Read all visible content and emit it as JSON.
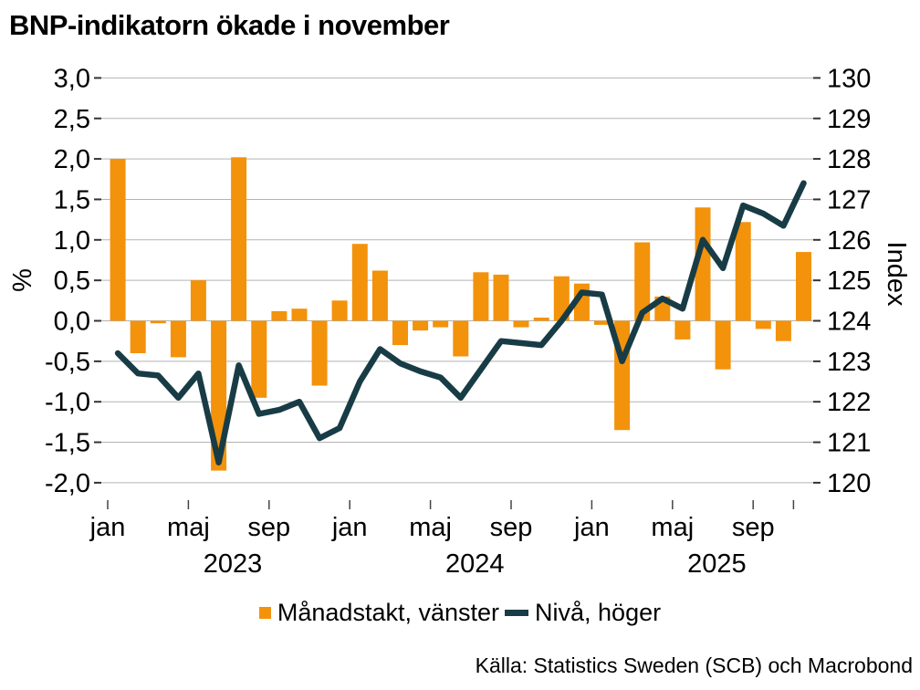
{
  "header": {
    "title": "BNP-indikatorn ökade i november"
  },
  "footer": {
    "source": "Källa: Statistics Sweden (SCB) och Macrobond"
  },
  "legend": {
    "items": [
      {
        "label": "Månadstakt, vänster",
        "marker": "square",
        "color": "#F3920B"
      },
      {
        "label": "Nivå, höger",
        "marker": "dash",
        "color": "#183C45"
      }
    ]
  },
  "chart_data": {
    "type": "combo-bar-line",
    "title": "BNP-indikatorn ökade i november",
    "grid": true,
    "legend_position": "bottom",
    "x": [
      "jan 2023",
      "feb 2023",
      "mar 2023",
      "apr 2023",
      "maj 2023",
      "jun 2023",
      "jul 2023",
      "aug 2023",
      "sep 2023",
      "okt 2023",
      "nov 2023",
      "dec 2023",
      "jan 2024",
      "feb 2024",
      "mar 2024",
      "apr 2024",
      "maj 2024",
      "jun 2024",
      "jul 2024",
      "aug 2024",
      "sep 2024",
      "okt 2024",
      "nov 2024",
      "dec 2024",
      "jan 2025",
      "feb 2025",
      "mar 2025",
      "apr 2025",
      "maj 2025",
      "jun 2025",
      "jul 2025",
      "aug 2025",
      "sep 2025",
      "okt 2025",
      "nov 2025"
    ],
    "series": [
      {
        "name": "Månadstakt, vänster",
        "type": "bar",
        "axis": "left",
        "unit": "%",
        "color": "#F3920B",
        "values": [
          2.0,
          -0.4,
          -0.03,
          -0.45,
          0.5,
          -1.85,
          2.02,
          -0.95,
          0.12,
          0.15,
          -0.8,
          0.25,
          0.95,
          0.62,
          -0.3,
          -0.12,
          -0.08,
          -0.44,
          0.6,
          0.57,
          -0.08,
          0.04,
          0.55,
          0.46,
          -0.05,
          -1.35,
          0.97,
          0.3,
          -0.23,
          1.4,
          -0.6,
          1.22,
          -0.1,
          -0.25,
          0.85
        ]
      },
      {
        "name": "Nivå, höger",
        "type": "line",
        "axis": "right",
        "unit": "index",
        "color": "#183C45",
        "values": [
          123.2,
          122.7,
          122.65,
          122.1,
          122.7,
          120.5,
          122.9,
          121.7,
          121.8,
          122.0,
          121.1,
          121.35,
          122.5,
          123.3,
          122.95,
          122.75,
          122.6,
          122.1,
          122.8,
          123.5,
          123.45,
          123.4,
          124.0,
          124.7,
          124.65,
          123.0,
          124.2,
          124.55,
          124.3,
          126.0,
          125.3,
          126.85,
          126.65,
          126.35,
          127.4
        ]
      }
    ],
    "left_axis": {
      "label": "%",
      "lim": [
        -2.0,
        3.0
      ],
      "tick_step": 0.5,
      "tick_labels": [
        "3,0",
        "2,5",
        "2,0",
        "1,5",
        "1,0",
        "0,5",
        "0,0",
        "-0,5",
        "-1,0",
        "-1,5",
        "-2,0"
      ]
    },
    "right_axis": {
      "label": "Index",
      "lim": [
        120,
        130
      ],
      "tick_step": 1,
      "tick_labels": [
        "130",
        "129",
        "128",
        "127",
        "126",
        "125",
        "124",
        "123",
        "122",
        "121",
        "120"
      ]
    },
    "x_axis": {
      "month_ticks": [
        {
          "i": 0,
          "label": "jan"
        },
        {
          "i": 4,
          "label": "maj"
        },
        {
          "i": 8,
          "label": "sep"
        },
        {
          "i": 12,
          "label": "jan"
        },
        {
          "i": 16,
          "label": "maj"
        },
        {
          "i": 20,
          "label": "sep"
        },
        {
          "i": 24,
          "label": "jan"
        },
        {
          "i": 28,
          "label": "maj"
        },
        {
          "i": 32,
          "label": "sep"
        },
        {
          "i": 34,
          "label": ""
        }
      ],
      "year_labels": [
        {
          "i": 6,
          "label": "2023"
        },
        {
          "i": 18,
          "label": "2024"
        },
        {
          "i": 30,
          "label": "2025"
        }
      ]
    }
  }
}
